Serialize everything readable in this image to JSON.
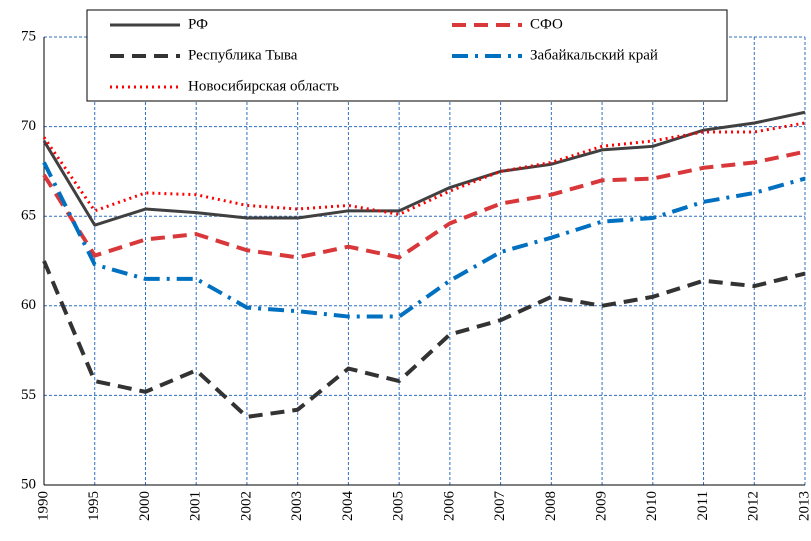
{
  "chart_data": {
    "type": "line",
    "categories": [
      "1990",
      "1995",
      "2000",
      "2001",
      "2002",
      "2003",
      "2004",
      "2005",
      "2006",
      "2007",
      "2008",
      "2009",
      "2010",
      "2011",
      "2012",
      "2013"
    ],
    "ylim": [
      50,
      75
    ],
    "yticks": [
      50,
      55,
      60,
      65,
      70,
      75
    ],
    "grid": true,
    "series": [
      {
        "name": "РФ",
        "color": "#404040",
        "dash": "solid",
        "values": [
          69.2,
          64.5,
          65.4,
          65.2,
          64.9,
          64.9,
          65.3,
          65.3,
          66.6,
          67.5,
          67.9,
          68.7,
          68.9,
          69.8,
          70.2,
          70.8
        ]
      },
      {
        "name": "СФО",
        "color": "#d9383a",
        "dash": "dashed",
        "values": [
          67.3,
          62.8,
          63.7,
          64.0,
          63.1,
          62.7,
          63.3,
          62.7,
          64.6,
          65.7,
          66.2,
          67.0,
          67.1,
          67.7,
          68.0,
          68.6
        ]
      },
      {
        "name": "Республика Тыва",
        "color": "#333333",
        "dash": "dashed",
        "values": [
          62.5,
          55.8,
          55.2,
          56.4,
          53.8,
          54.2,
          56.5,
          55.8,
          58.4,
          59.2,
          60.5,
          60.0,
          60.5,
          61.4,
          61.1,
          61.8
        ]
      },
      {
        "name": "Забайкальский край",
        "color": "#0070c0",
        "dash": "dashdot",
        "values": [
          68.0,
          62.3,
          61.5,
          61.5,
          59.9,
          59.7,
          59.4,
          59.4,
          61.4,
          63.0,
          63.8,
          64.7,
          64.9,
          65.8,
          66.3,
          67.1
        ]
      },
      {
        "name": "Новосибирская область",
        "color": "#ff0000",
        "dash": "dotted",
        "values": [
          69.4,
          65.3,
          66.3,
          66.2,
          65.6,
          65.4,
          65.6,
          65.1,
          66.4,
          67.5,
          68.0,
          68.9,
          69.2,
          69.7,
          69.7,
          70.2
        ]
      }
    ]
  }
}
